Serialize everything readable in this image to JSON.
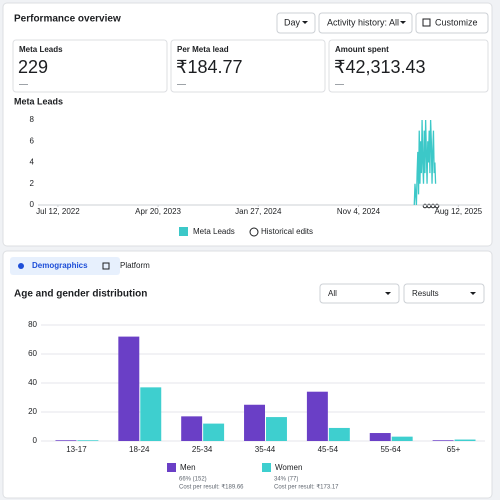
{
  "header": {
    "title": "Performance overview",
    "controls": [
      "Day",
      "Activity history: All",
      "Customize"
    ]
  },
  "metrics": [
    {
      "label": "Meta Leads",
      "value": 229,
      "sub": "—"
    },
    {
      "label": "Per Meta lead",
      "value": "₹184.77",
      "sub": "—"
    },
    {
      "label": "Amount spent",
      "value": "₹42,313.43",
      "sub": "—"
    }
  ],
  "tabs": [
    "Demographics",
    "Platform"
  ],
  "section": {
    "title": "Age and gender distribution",
    "filters": [
      "All",
      "Results"
    ]
  },
  "chart_data": [
    {
      "type": "line",
      "title": "Meta Leads",
      "x": [
        "2025-04-10",
        "2025-04-12",
        "2025-04-14",
        "2025-04-16",
        "2025-04-18",
        "2025-04-20",
        "2025-04-22",
        "2025-04-24",
        "2025-04-26",
        "2025-04-28",
        "2025-04-30",
        "2025-05-02",
        "2025-05-04",
        "2025-05-06",
        "2025-05-08",
        "2025-05-10",
        "2025-05-12",
        "2025-05-14",
        "2025-05-16",
        "2025-05-18",
        "2025-05-20",
        "2025-05-22",
        "2025-05-24",
        "2025-05-26",
        "2025-05-28",
        "2025-05-30",
        "2025-06-01",
        "2025-06-03",
        "2025-06-05",
        "2025-06-07",
        "2025-06-09"
      ],
      "series": [
        {
          "name": "Meta Leads",
          "color": "#3cc8c8",
          "values": [
            0,
            2,
            1,
            0,
            3,
            5,
            1,
            7,
            2,
            6,
            3,
            8,
            4,
            2,
            7,
            3,
            8,
            5,
            2,
            6,
            4,
            7,
            3,
            8,
            6,
            2,
            5,
            7,
            3,
            4,
            2
          ]
        }
      ],
      "extra_legend": "Historical edits",
      "xlim": [
        "2022-05-17",
        "2025-10-12"
      ],
      "xticks": [
        {
          "value": "2022-07-12",
          "label": "Jul 12, 2022"
        },
        {
          "value": "2023-04-20",
          "label": "Apr 20, 2023"
        },
        {
          "value": "2024-01-27",
          "label": "Jan 27, 2024"
        },
        {
          "value": "2024-11-04",
          "label": "Nov 4, 2024"
        },
        {
          "value": "2025-08-12",
          "label": "Aug 12, 2025"
        }
      ],
      "ylim": [
        0,
        8
      ],
      "yticks": [
        0,
        2,
        4,
        6,
        8
      ],
      "grid": false
    },
    {
      "type": "bar",
      "categories": [
        "13-17",
        "18-24",
        "25-34",
        "35-44",
        "45-54",
        "55-64",
        "65+"
      ],
      "series": [
        {
          "name": "Men",
          "color": "#6a3fc6",
          "values": [
            0.5,
            72,
            17,
            25,
            34,
            5.5,
            0.5
          ],
          "share": "66% (152)",
          "cost": "Cost per result: ₹189.66"
        },
        {
          "name": "Women",
          "color": "#3ecfcf",
          "values": [
            0.5,
            37,
            12,
            16.5,
            9,
            3,
            1
          ],
          "share": "34% (77)",
          "cost": "Cost per result: ₹173.17"
        }
      ],
      "ylim": [
        0,
        80
      ],
      "yticks": [
        0,
        20,
        40,
        60,
        80
      ],
      "grid": true
    }
  ]
}
